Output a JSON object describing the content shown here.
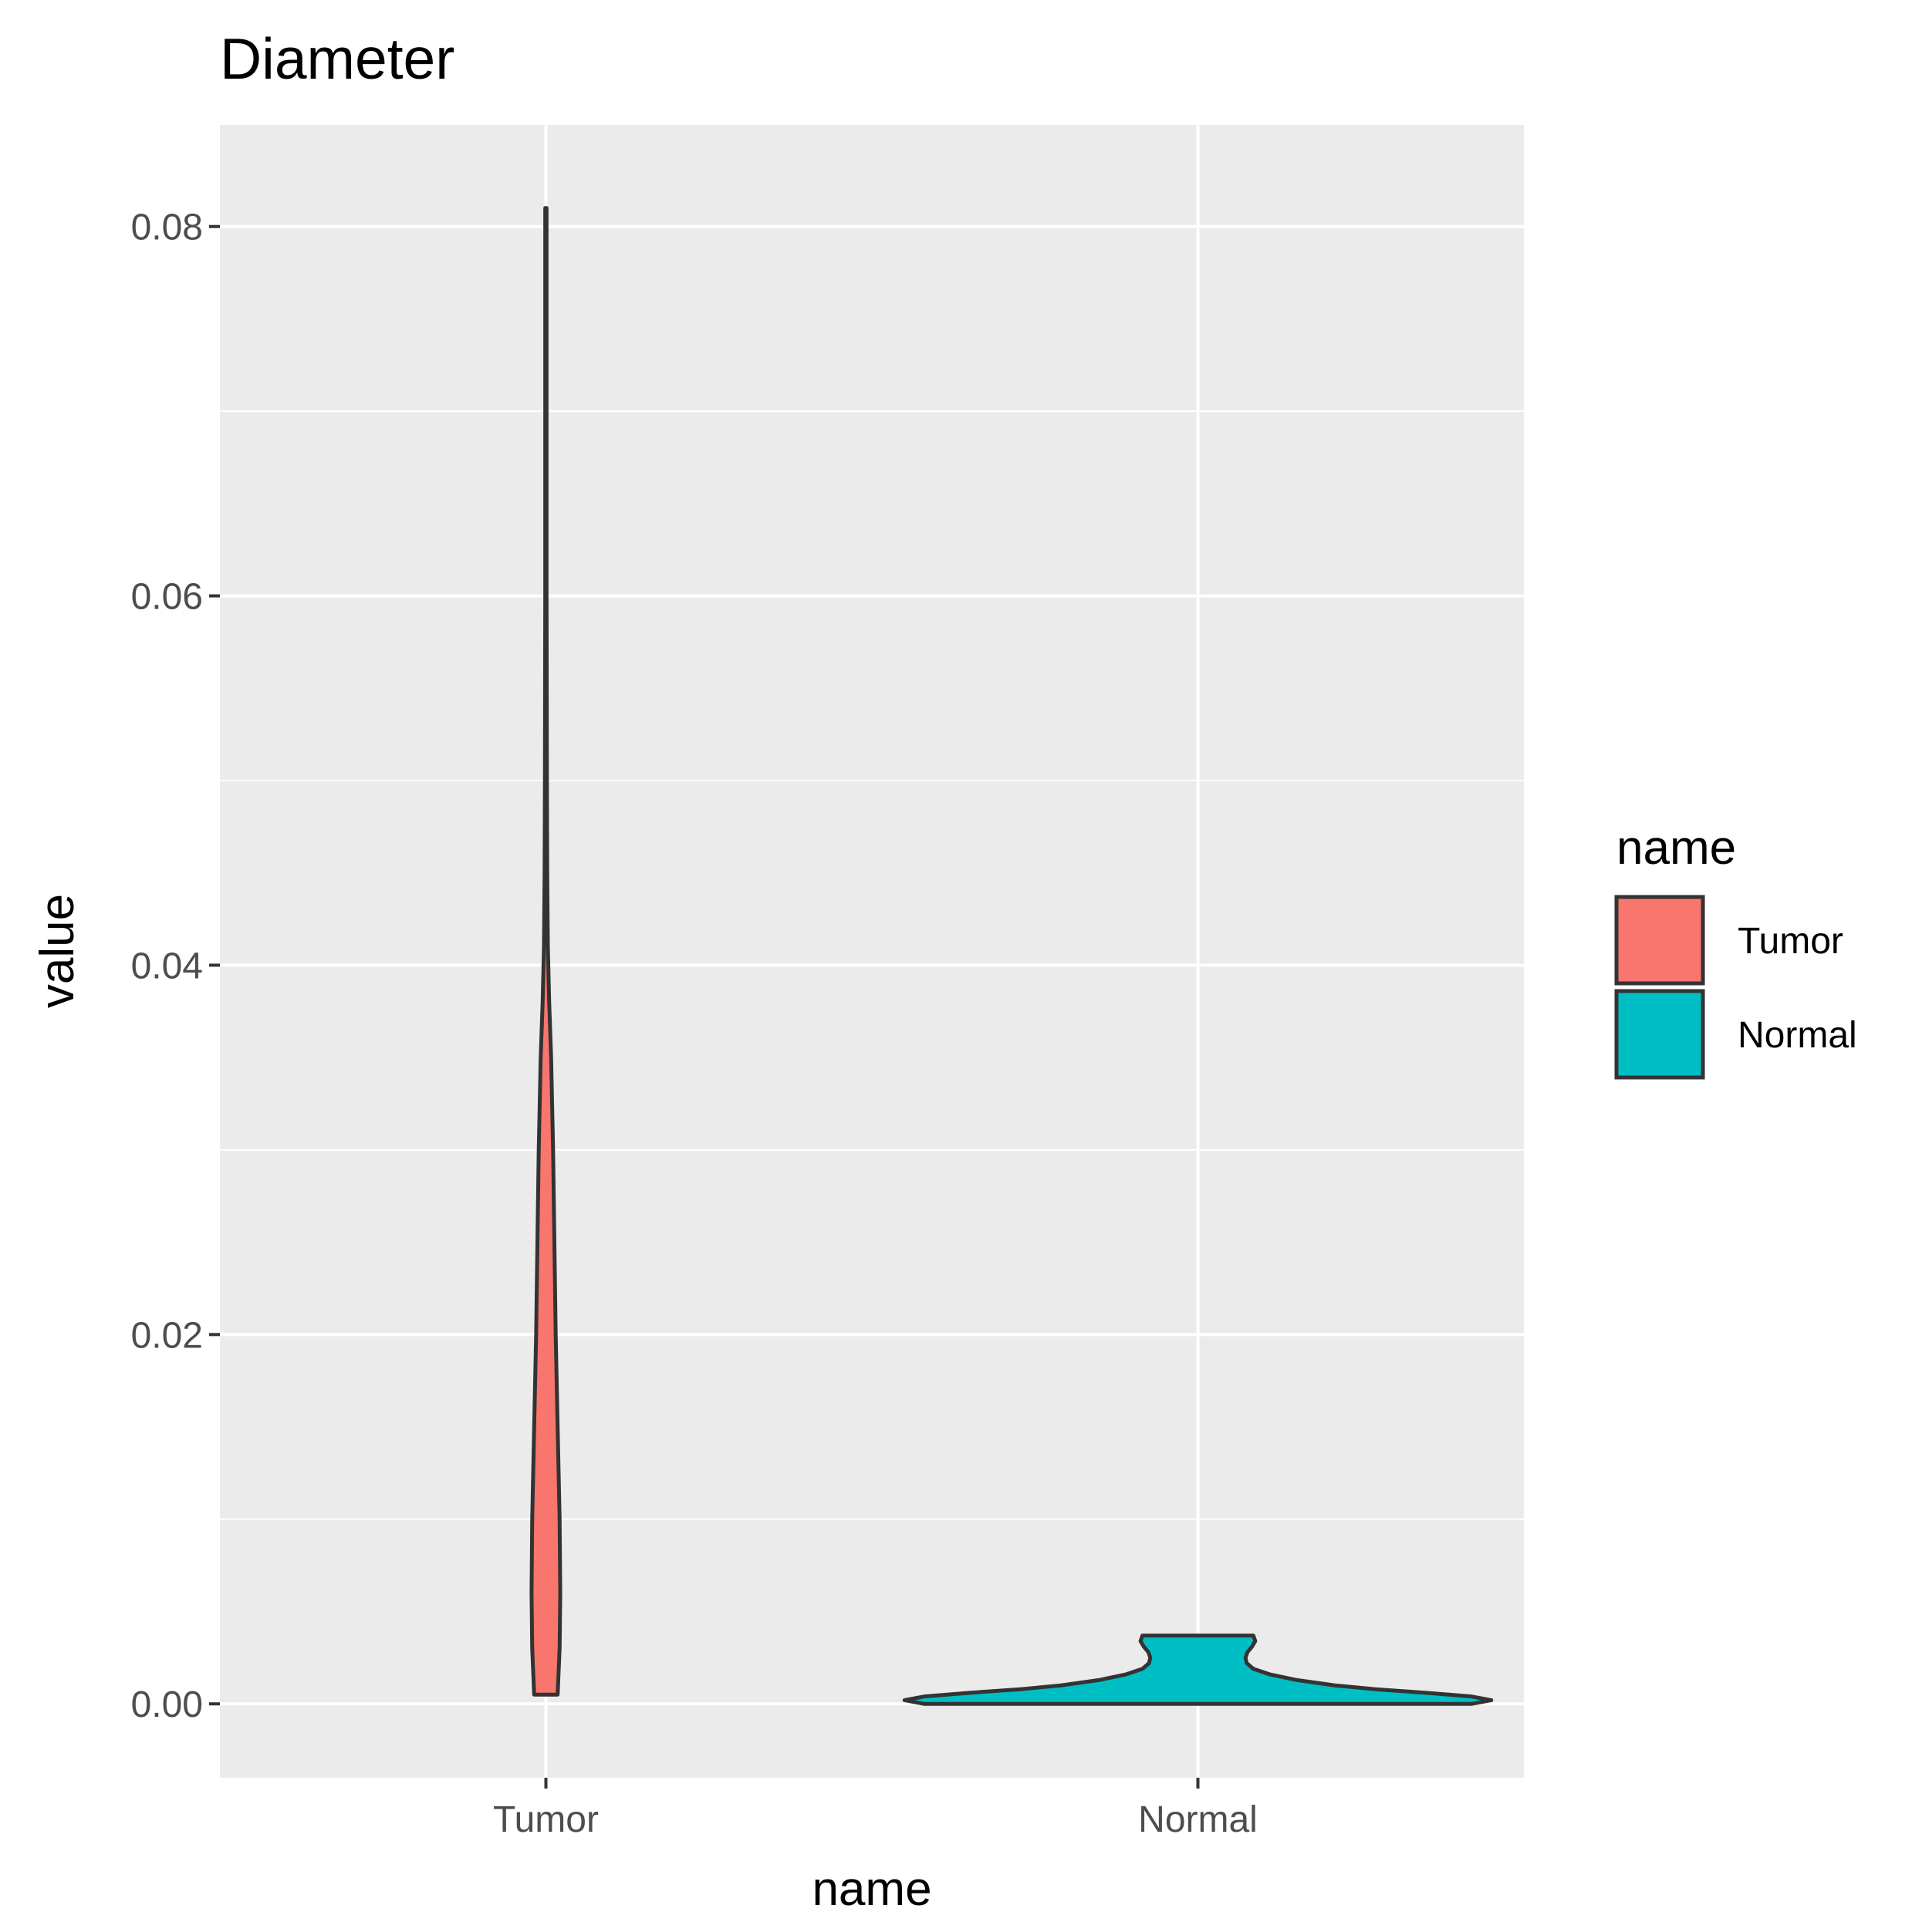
{
  "chart_data": {
    "type": "violin",
    "title": "Diameter",
    "xlabel": "name",
    "ylabel": "value",
    "categories": [
      "Tumor",
      "Normal"
    ],
    "ylim": [
      -0.004,
      0.0855
    ],
    "y_ticks": [
      0.0,
      0.02,
      0.04,
      0.06,
      0.08
    ],
    "y_tick_labels": [
      "0.00",
      "0.02",
      "0.04",
      "0.06",
      "0.08"
    ],
    "grid": true,
    "legend": {
      "title": "name",
      "placement": "right",
      "entries": [
        "Tumor",
        "Normal"
      ]
    },
    "series": [
      {
        "name": "Tumor",
        "color": "#F8766D",
        "y_range": [
          0.0005,
          0.081
        ],
        "profile": [
          {
            "y": 0.0005,
            "half_width": 0.018
          },
          {
            "y": 0.003,
            "half_width": 0.021
          },
          {
            "y": 0.006,
            "half_width": 0.022
          },
          {
            "y": 0.01,
            "half_width": 0.021
          },
          {
            "y": 0.015,
            "half_width": 0.018
          },
          {
            "y": 0.02,
            "half_width": 0.015
          },
          {
            "y": 0.025,
            "half_width": 0.013
          },
          {
            "y": 0.03,
            "half_width": 0.011
          },
          {
            "y": 0.035,
            "half_width": 0.008
          },
          {
            "y": 0.038,
            "half_width": 0.005
          },
          {
            "y": 0.041,
            "half_width": 0.003
          },
          {
            "y": 0.045,
            "half_width": 0.002
          },
          {
            "y": 0.05,
            "half_width": 0.0015
          },
          {
            "y": 0.06,
            "half_width": 0.001
          },
          {
            "y": 0.07,
            "half_width": 0.001
          },
          {
            "y": 0.081,
            "half_width": 0.001
          }
        ]
      },
      {
        "name": "Normal",
        "color": "#00BFC4",
        "y_range": [
          0.0,
          0.0037
        ],
        "profile": [
          {
            "y": 0.0,
            "half_width": 0.42
          },
          {
            "y": 0.0002,
            "half_width": 0.45
          },
          {
            "y": 0.0004,
            "half_width": 0.42
          },
          {
            "y": 0.0006,
            "half_width": 0.35
          },
          {
            "y": 0.0008,
            "half_width": 0.27
          },
          {
            "y": 0.001,
            "half_width": 0.21
          },
          {
            "y": 0.0013,
            "half_width": 0.15
          },
          {
            "y": 0.0016,
            "half_width": 0.11
          },
          {
            "y": 0.0019,
            "half_width": 0.085
          },
          {
            "y": 0.0022,
            "half_width": 0.075
          },
          {
            "y": 0.0025,
            "half_width": 0.073
          },
          {
            "y": 0.0028,
            "half_width": 0.076
          },
          {
            "y": 0.0031,
            "half_width": 0.083
          },
          {
            "y": 0.0034,
            "half_width": 0.088
          },
          {
            "y": 0.0037,
            "half_width": 0.085
          }
        ]
      }
    ]
  }
}
